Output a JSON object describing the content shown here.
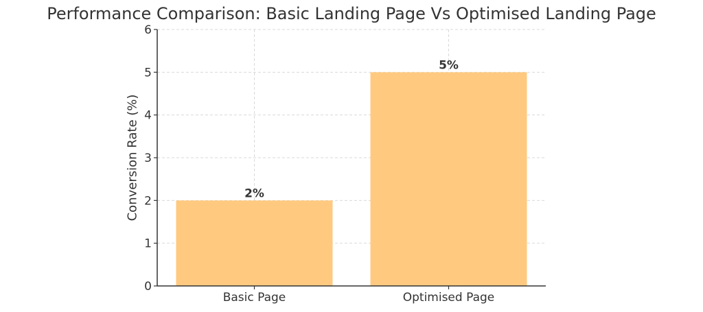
{
  "chart_data": {
    "type": "bar",
    "title": "Performance Comparison: Basic Landing Page Vs Optimised Landing Page",
    "xlabel": "",
    "ylabel": "Conversion Rate (%)",
    "categories": [
      "Basic Page",
      "Optimised Page"
    ],
    "values": [
      2,
      5
    ],
    "data_labels": [
      "2%",
      "5%"
    ],
    "ylim": [
      0,
      6
    ],
    "yticks": [
      0,
      1,
      2,
      3,
      4,
      5,
      6
    ],
    "grid": true,
    "legend": null,
    "colors": {
      "bar": "#FFCA80",
      "grid": "#D9D9D9",
      "axis": "#333333",
      "text": "#333333"
    }
  }
}
